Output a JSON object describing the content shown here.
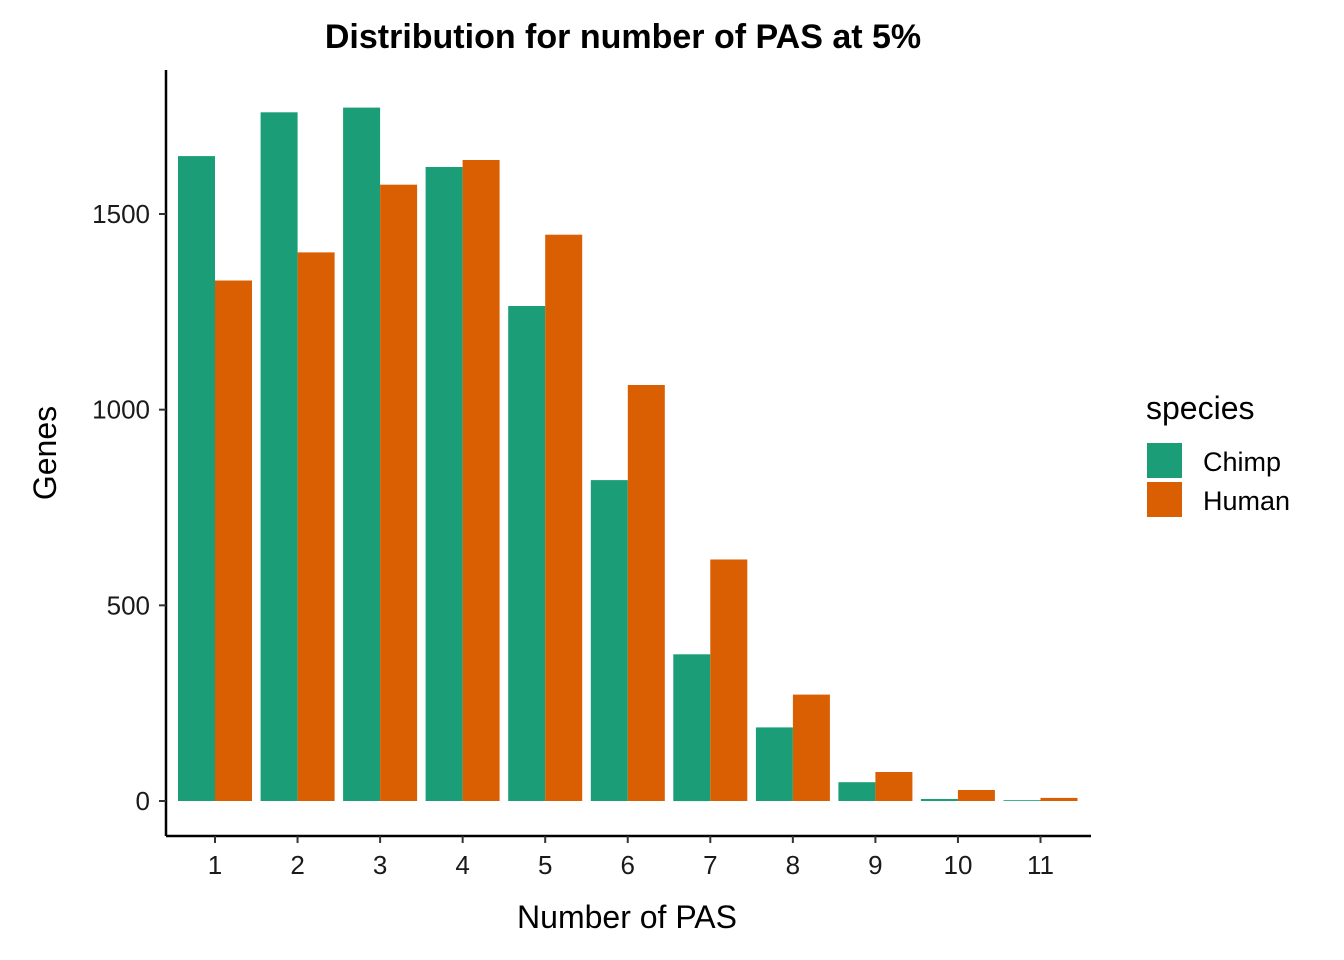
{
  "chart_data": {
    "type": "bar",
    "title": "Distribution for number of PAS at 5%",
    "xlabel": "Number of PAS",
    "ylabel": "Genes",
    "categories": [
      "1",
      "2",
      "3",
      "4",
      "5",
      "6",
      "7",
      "8",
      "9",
      "10",
      "11"
    ],
    "series": [
      {
        "name": "Chimp",
        "color": "#1B9E77",
        "values": [
          1648,
          1760,
          1772,
          1620,
          1265,
          820,
          375,
          188,
          48,
          5,
          2
        ]
      },
      {
        "name": "Human",
        "color": "#D95F02",
        "values": [
          1330,
          1402,
          1575,
          1638,
          1447,
          1063,
          617,
          272,
          74,
          28,
          8
        ]
      }
    ],
    "ylim": [
      0,
      1800
    ],
    "yticks": [
      0,
      500,
      1000,
      1500
    ],
    "grid": false,
    "legend": {
      "title": "species",
      "position": "right"
    }
  }
}
